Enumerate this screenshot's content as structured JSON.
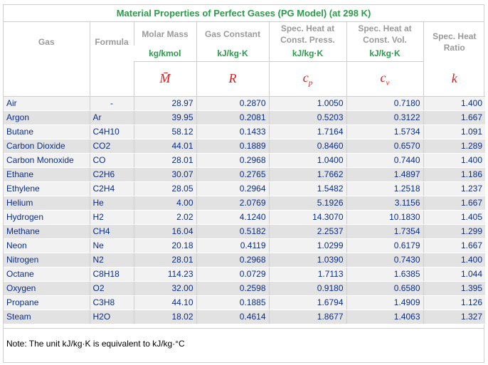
{
  "title": "Material Properties of Perfect Gases (PG Model) (at 298 K)",
  "headers": {
    "gas": "Gas",
    "formula": "Formula",
    "molar_mass": "Molar Mass",
    "gas_constant": "Gas Constant",
    "cp_line1": "Spec. Heat at",
    "cp_line2": "Const. Press.",
    "cv_line1": "Spec. Heat at",
    "cv_line2": "Const. Vol.",
    "k_line1": "Spec. Heat",
    "k_line2": "Ratio"
  },
  "units": {
    "molar_mass": "kg/kmol",
    "gas_constant": "kJ/kg·K",
    "cp": "kJ/kg·K",
    "cv": "kJ/kg·K"
  },
  "symbols": {
    "molar_mass": "M̄",
    "gas_constant": "R",
    "cp": "c",
    "cp_sub": "p",
    "cv": "c",
    "cv_sub": "v",
    "k": "k"
  },
  "rows": [
    {
      "gas": "Air",
      "formula": "-",
      "M": "28.97",
      "R": "0.2870",
      "cp": "1.0050",
      "cv": "0.7180",
      "k": "1.400"
    },
    {
      "gas": "Argon",
      "formula": "Ar",
      "M": "39.95",
      "R": "0.2081",
      "cp": "0.5203",
      "cv": "0.3122",
      "k": "1.667"
    },
    {
      "gas": "Butane",
      "formula": "C4H10",
      "M": "58.12",
      "R": "0.1433",
      "cp": "1.7164",
      "cv": "1.5734",
      "k": "1.091"
    },
    {
      "gas": "Carbon Dioxide",
      "formula": "CO2",
      "M": "44.01",
      "R": "0.1889",
      "cp": "0.8460",
      "cv": "0.6570",
      "k": "1.289"
    },
    {
      "gas": "Carbon Monoxide",
      "formula": "CO",
      "M": "28.01",
      "R": "0.2968",
      "cp": "1.0400",
      "cv": "0.7440",
      "k": "1.400"
    },
    {
      "gas": "Ethane",
      "formula": "C2H6",
      "M": "30.07",
      "R": "0.2765",
      "cp": "1.7662",
      "cv": "1.4897",
      "k": "1.186"
    },
    {
      "gas": "Ethylene",
      "formula": "C2H4",
      "M": "28.05",
      "R": "0.2964",
      "cp": "1.5482",
      "cv": "1.2518",
      "k": "1.237"
    },
    {
      "gas": "Helium",
      "formula": "He",
      "M": "4.00",
      "R": "2.0769",
      "cp": "5.1926",
      "cv": "3.1156",
      "k": "1.667"
    },
    {
      "gas": "Hydrogen",
      "formula": "H2",
      "M": "2.02",
      "R": "4.1240",
      "cp": "14.3070",
      "cv": "10.1830",
      "k": "1.405"
    },
    {
      "gas": "Methane",
      "formula": "CH4",
      "M": "16.04",
      "R": "0.5182",
      "cp": "2.2537",
      "cv": "1.7354",
      "k": "1.299"
    },
    {
      "gas": "Neon",
      "formula": "Ne",
      "M": "20.18",
      "R": "0.4119",
      "cp": "1.0299",
      "cv": "0.6179",
      "k": "1.667"
    },
    {
      "gas": "Nitrogen",
      "formula": "N2",
      "M": "28.01",
      "R": "0.2968",
      "cp": "1.0390",
      "cv": "0.7430",
      "k": "1.400"
    },
    {
      "gas": "Octane",
      "formula": "C8H18",
      "M": "114.23",
      "R": "0.0729",
      "cp": "1.7113",
      "cv": "1.6385",
      "k": "1.044"
    },
    {
      "gas": "Oxygen",
      "formula": "O2",
      "M": "32.00",
      "R": "0.2598",
      "cp": "0.9180",
      "cv": "0.6580",
      "k": "1.395"
    },
    {
      "gas": "Propane",
      "formula": "C3H8",
      "M": "44.10",
      "R": "0.1885",
      "cp": "1.6794",
      "cv": "1.4909",
      "k": "1.126"
    },
    {
      "gas": "Steam",
      "formula": "H2O",
      "M": "18.02",
      "R": "0.4614",
      "cp": "1.8677",
      "cv": "1.4063",
      "k": "1.327"
    }
  ],
  "note": "Note: The unit kJ/kg·K is equivalent to kJ/kg·°C"
}
